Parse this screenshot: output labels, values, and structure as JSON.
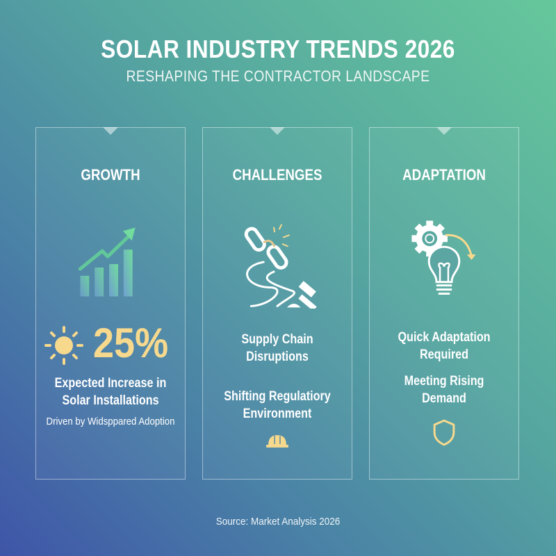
{
  "header": {
    "title": "SOLAR INDUSTRY TRENDS 2026",
    "subtitle": "RESHAPING THE CONTRACTOR LANDSCAPE"
  },
  "colors": {
    "accent": "#f7d98e",
    "bar_green": "#6fd89c",
    "background_top": "#66c79b",
    "background_bottom": "#3f55a8"
  },
  "cards": [
    {
      "title": "GROWTH",
      "icon": "bar-chart-arrow-icon",
      "stat_icon": "sun-icon",
      "stat": "25%",
      "lines": [
        "Expected Increase in",
        "Solar Installations"
      ],
      "note": "Driven by Widsppared Adoption"
    },
    {
      "title": "CHALLENGES",
      "icon": "broken-chain-gavel-icon",
      "items": [
        [
          "Supply Chain",
          "Disruptions"
        ],
        [
          "Shifting Regulatiory",
          "Environment"
        ]
      ],
      "footer_icon": "hard-hat-icon"
    },
    {
      "title": "ADAPTATION",
      "icon": "gear-lightbulb-icon",
      "items": [
        [
          "Quick Adaptation",
          "Required"
        ],
        [
          "Meeting Rising",
          "Demand"
        ]
      ],
      "footer_icon": "shield-icon"
    }
  ],
  "footer": {
    "source": "Source: Market Analysis 2026"
  }
}
